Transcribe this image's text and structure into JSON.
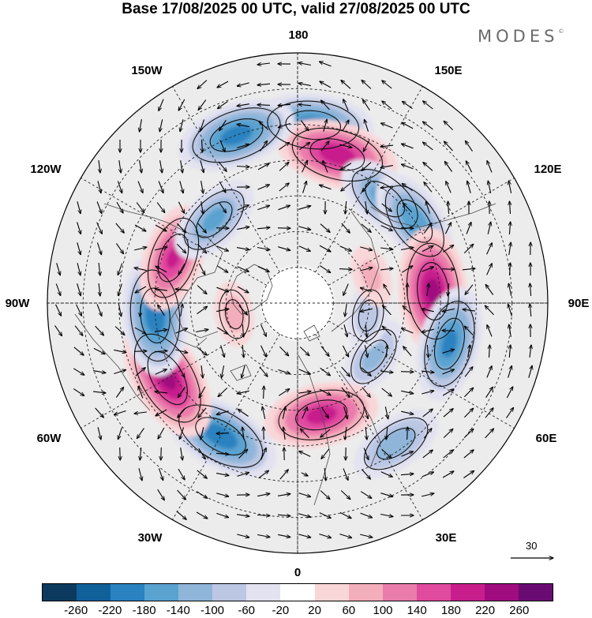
{
  "title": "Base 17/08/2025 00 UTC, valid 27/08/2025 00 UTC",
  "brand": {
    "name": "MODES",
    "mark": "©"
  },
  "longitude_labels": {
    "lon_180": "180",
    "lon_150e": "150E",
    "lon_120e": "120E",
    "lon_90e": "90E",
    "lon_60e": "60E",
    "lon_30e": "30E",
    "lon_0": "0",
    "lon_30w": "30W",
    "lon_60w": "60W",
    "lon_90w": "90W",
    "lon_120w": "120W",
    "lon_150w": "150W"
  },
  "wind_reference": {
    "value": "30"
  },
  "colorbar": {
    "tick_labels": [
      "-260",
      "-220",
      "-180",
      "-140",
      "-100",
      "-60",
      "-20",
      "20",
      "60",
      "100",
      "140",
      "180",
      "220",
      "260"
    ],
    "colors": [
      "#0b3a5e",
      "#10609a",
      "#2a82c0",
      "#5aa2d0",
      "#8fb5d9",
      "#bcc7e3",
      "#e2e2f0",
      "#ffffff",
      "#f9d6d8",
      "#f3aebb",
      "#ea7cab",
      "#e04a9f",
      "#c81e8c",
      "#a00c80",
      "#6a0a73"
    ]
  },
  "anomalies": [
    {
      "name": "anomaly-neg-pacific",
      "lon": 175,
      "lat": 40,
      "value": -200
    },
    {
      "name": "anomaly-pos-pacific",
      "lon": 165,
      "lat": 47,
      "value": 210
    },
    {
      "name": "anomaly-neg-kamchatka",
      "lon": 140,
      "lat": 52,
      "value": -160
    },
    {
      "name": "anomaly-neg-okhotsk",
      "lon": 125,
      "lat": 50,
      "value": -170
    },
    {
      "name": "anomaly-pos-siberia",
      "lon": 95,
      "lat": 52,
      "value": 230
    },
    {
      "name": "anomaly-neg-central-asia",
      "lon": 75,
      "lat": 46,
      "value": -190
    },
    {
      "name": "anomaly-neg-west-siberia",
      "lon": 55,
      "lat": 64,
      "value": -110
    },
    {
      "name": "anomaly-pos-scandinavia",
      "lon": 12,
      "lat": 58,
      "value": 200
    },
    {
      "name": "anomaly-neg-europe",
      "lon": 35,
      "lat": 42,
      "value": -130
    },
    {
      "name": "anomaly-neg-atlantic",
      "lon": -30,
      "lat": 47,
      "value": -210
    },
    {
      "name": "anomaly-pos-west-atlantic",
      "lon": -60,
      "lat": 48,
      "value": 230
    },
    {
      "name": "anomaly-neg-canada-east",
      "lon": -85,
      "lat": 50,
      "value": -210
    },
    {
      "name": "anomaly-pos-canada-west",
      "lon": -110,
      "lat": 53,
      "value": 180
    },
    {
      "name": "anomaly-neg-alaska",
      "lon": -135,
      "lat": 57,
      "value": -150
    },
    {
      "name": "anomaly-neg-pacific-east",
      "lon": -160,
      "lat": 40,
      "value": -200
    },
    {
      "name": "anomaly-pos-arctic-canada",
      "lon": -80,
      "lat": 72,
      "value": 70
    },
    {
      "name": "anomaly-neg-kara",
      "lon": 80,
      "lat": 70,
      "value": -80
    },
    {
      "name": "anomaly-pos-laptev",
      "lon": 110,
      "lat": 68,
      "value": 60
    }
  ]
}
